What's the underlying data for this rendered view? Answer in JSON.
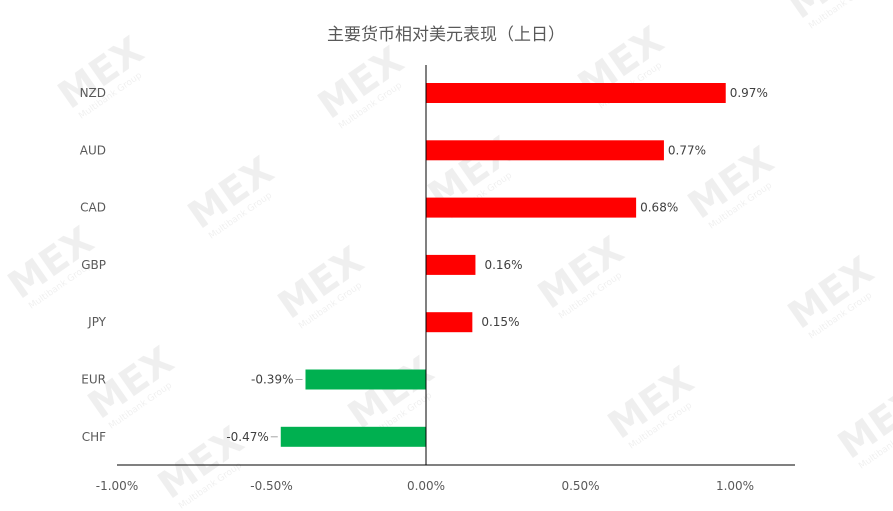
{
  "chart_data": {
    "type": "bar",
    "orientation": "horizontal",
    "title": "主要货币相对美元表现（上日）",
    "categories": [
      "NZD",
      "AUD",
      "CAD",
      "GBP",
      "JPY",
      "EUR",
      "CHF"
    ],
    "values": [
      0.97,
      0.77,
      0.68,
      0.16,
      0.15,
      -0.39,
      -0.47
    ],
    "data_labels": [
      "0.97%",
      "0.77%",
      "0.68%",
      "0.16%",
      "0.15%",
      "-0.39%",
      "-0.47%"
    ],
    "xlim": [
      -1.0,
      1.0
    ],
    "x_ticks": [
      -1.0,
      -0.5,
      0.0,
      0.5,
      1.0
    ],
    "x_tick_labels": [
      "-1.00%",
      "-0.50%",
      "0.00%",
      "0.50%",
      "1.00%"
    ],
    "xlabel": "",
    "ylabel": "",
    "grid": false,
    "legend": "none",
    "colors": {
      "positive": "#ff0000",
      "negative": "#00b050",
      "axis": "#000000"
    }
  },
  "watermark": {
    "logo_text": "MEX",
    "sub_text": "Multibank Group"
  }
}
